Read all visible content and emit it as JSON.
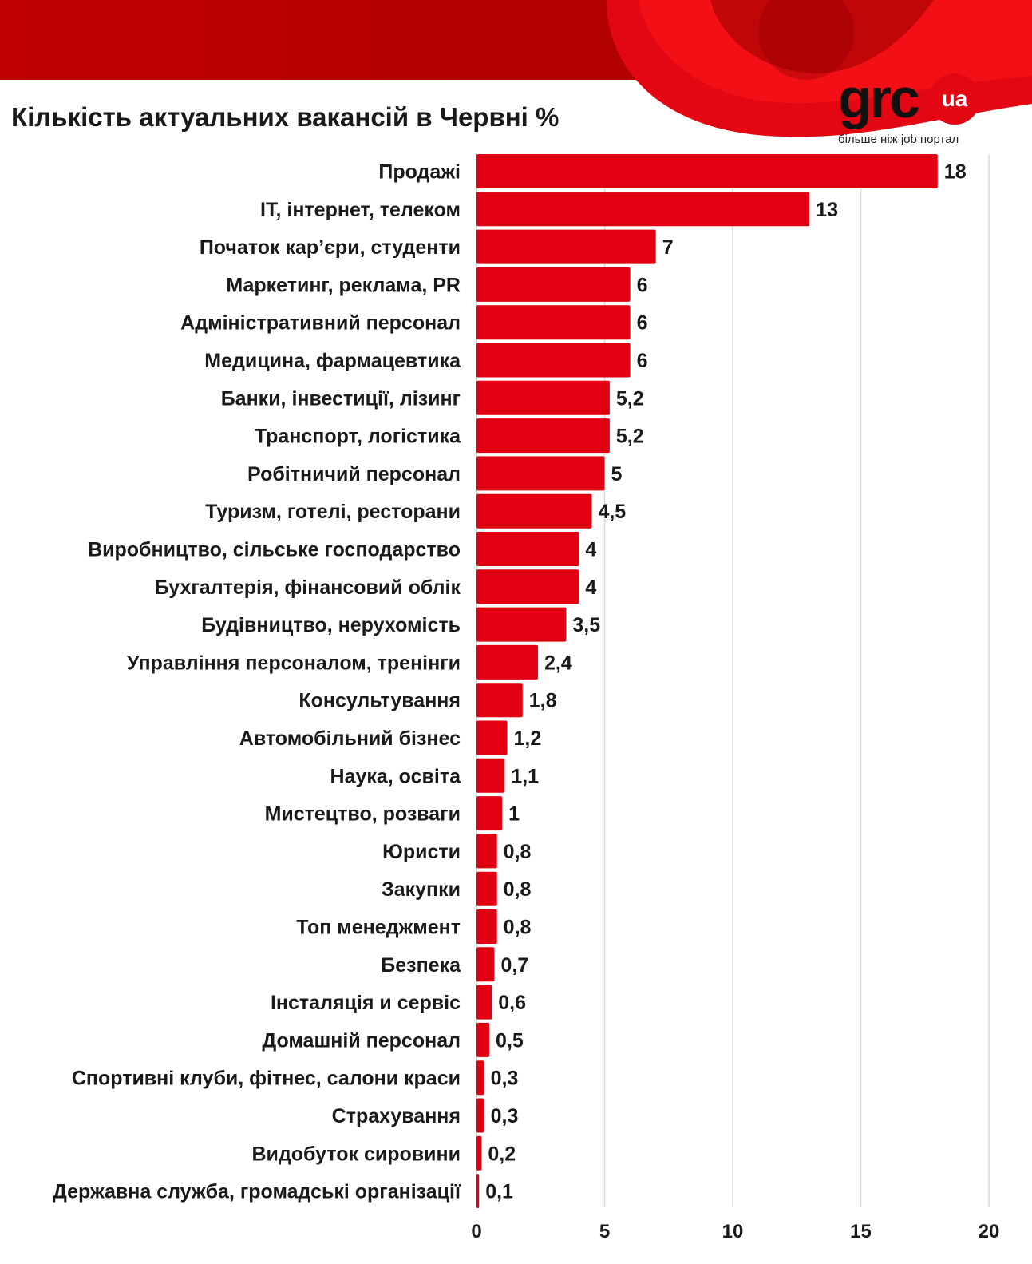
{
  "header": {
    "brand_dark": "#b50000",
    "brand_red": "#e30613"
  },
  "logo": {
    "word": "grc",
    "badge": "ua",
    "tagline": "більше ніж job портал"
  },
  "chart_data": {
    "type": "bar",
    "orientation": "horizontal",
    "title": "Кількість актуальних вакансій в Червні %",
    "xlabel": "",
    "ylabel": "",
    "xlim": [
      0,
      20
    ],
    "xticks": [
      "0",
      "5",
      "10",
      "15",
      "20"
    ],
    "grid": true,
    "bar_color": "#e00012",
    "categories": [
      "Продажі",
      "IT, інтернет, телеком",
      "Початок кар’єри, студенти",
      "Маркетинг, реклама, PR",
      "Адміністративний персонал",
      "Медицина, фармацевтика",
      "Банки, інвестиції, лізинг",
      "Транспорт, логістика",
      "Робітничий персонал",
      "Туризм, готелі, ресторани",
      "Виробництво, сільське господарство",
      "Бухгалтерія, фінансовий облік",
      "Будівництво, нерухомість",
      "Управління персоналом, тренінги",
      "Консультування",
      "Автомобільний бізнес",
      "Наука, освіта",
      "Мистецтво, розваги",
      "Юристи",
      "Закупки",
      "Топ менеджмент",
      "Безпека",
      "Інсталяція и сервіс",
      "Домашній персонал",
      "Спортивні клуби, фітнес, салони краси",
      "Страхування",
      "Видобуток сировини",
      "Державна служба, громадські організації"
    ],
    "values": [
      18,
      13,
      7,
      6,
      6,
      6,
      5.2,
      5.2,
      5,
      4.5,
      4,
      4,
      3.5,
      2.4,
      1.8,
      1.2,
      1.1,
      1,
      0.8,
      0.8,
      0.8,
      0.7,
      0.6,
      0.5,
      0.3,
      0.3,
      0.2,
      0.1
    ],
    "value_labels": [
      "18",
      "13",
      "7",
      "6",
      "6",
      "6",
      "5,2",
      "5,2",
      "5",
      "4,5",
      "4",
      "4",
      "3,5",
      "2,4",
      "1,8",
      "1,2",
      "1,1",
      "1",
      "0,8",
      "0,8",
      "0,8",
      "0,7",
      "0,6",
      "0,5",
      "0,3",
      "0,3",
      "0,2",
      "0,1"
    ]
  }
}
